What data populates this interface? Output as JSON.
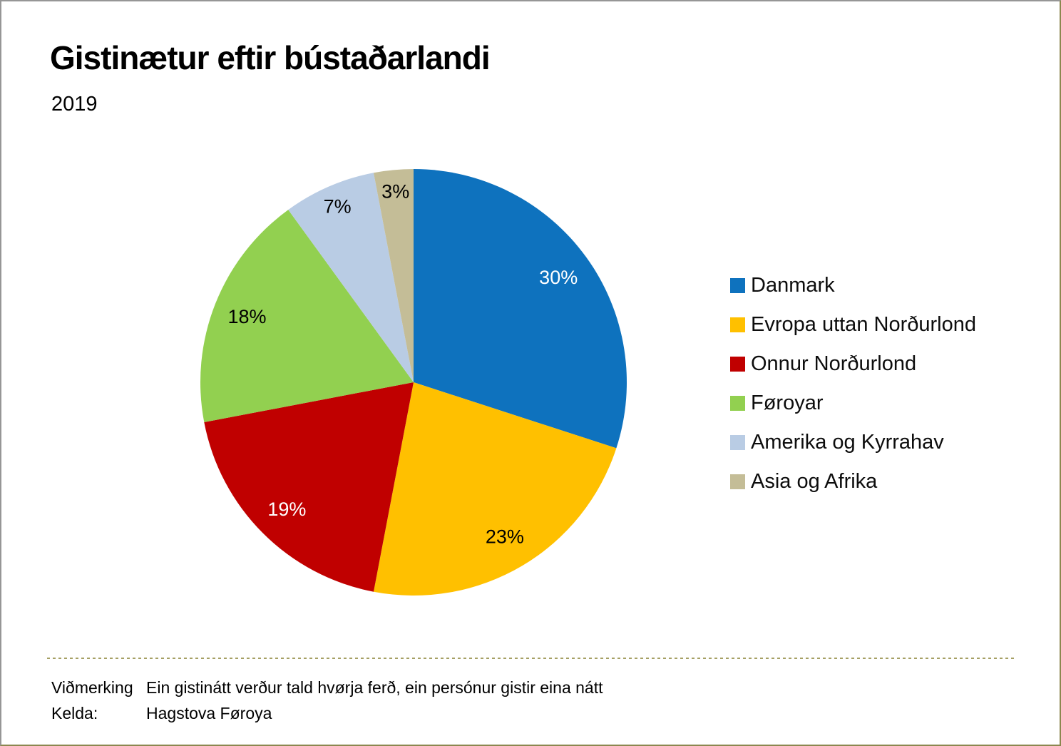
{
  "chart_data": {
    "type": "pie",
    "title": "Gistinætur eftir bústaðarlandi",
    "subtitle": "2019",
    "values_are": "percent",
    "total": 100,
    "start_angle_deg": 0,
    "direction": "clockwise",
    "legend_position": "right",
    "slices": [
      {
        "label": "Danmark",
        "value": 30,
        "display": "30%",
        "color": "#0E72BE",
        "label_color": "#FFFFFF"
      },
      {
        "label": "Evropa uttan Norðurlond",
        "value": 23,
        "display": "23%",
        "color": "#FFC000",
        "label_color": "#000000"
      },
      {
        "label": "Onnur Norðurlond",
        "value": 19,
        "display": "19%",
        "color": "#C00000",
        "label_color": "#FFFFFF"
      },
      {
        "label": "Føroyar",
        "value": 18,
        "display": "18%",
        "color": "#92D050",
        "label_color": "#000000"
      },
      {
        "label": "Amerika og Kyrrahav",
        "value": 7,
        "display": "7%",
        "color": "#B9CCE4",
        "label_color": "#000000"
      },
      {
        "label": "Asia og Afrika",
        "value": 3,
        "display": "3%",
        "color": "#C4BD97",
        "label_color": "#000000"
      }
    ]
  },
  "footer": {
    "note_label": "Viðmerking",
    "note_text": "Ein gistinátt verður tald hvørja ferð, ein persónur gistir eina nátt",
    "source_label": "Kelda:",
    "source_text": "Hagstova Føroya"
  },
  "separator_color": "#A6A064"
}
